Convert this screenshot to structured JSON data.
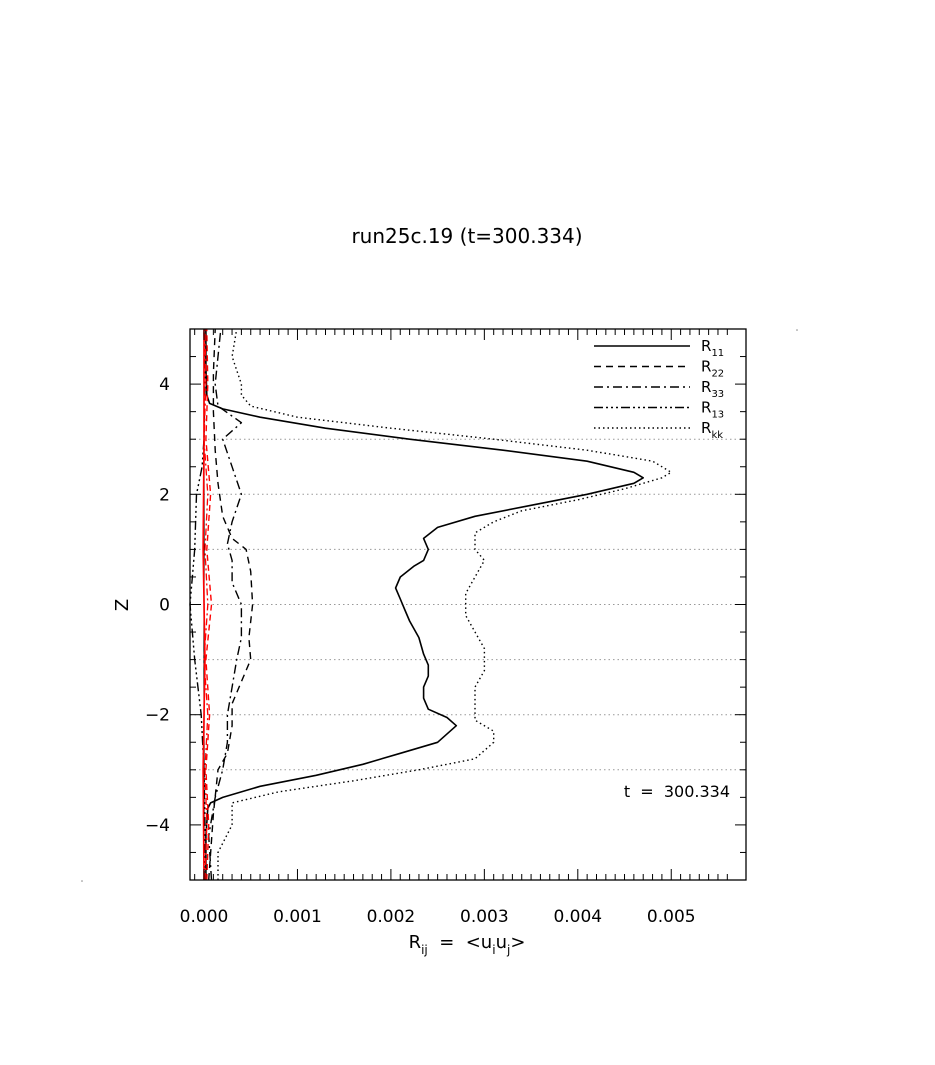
{
  "chart_data": {
    "type": "line",
    "title": "run25c.19 (t=300.334)",
    "xlabel": {
      "main": "R",
      "sub": "ij",
      "mid": "  =  <u",
      "sub2": "i",
      "mid2": "u",
      "sub3": "j",
      "end": ">"
    },
    "ylabel": "Z",
    "xlim": [
      -0.00015,
      0.0058
    ],
    "ylim": [
      -5,
      5
    ],
    "x_ticks": [
      0.0,
      0.001,
      0.002,
      0.003,
      0.004,
      0.005
    ],
    "x_tick_labels": [
      "0.000",
      "0.001",
      "0.002",
      "0.003",
      "0.004",
      "0.005"
    ],
    "y_ticks": [
      -4,
      -2,
      0,
      2,
      4
    ],
    "y_tick_labels": [
      "−4",
      "−2",
      "0",
      "2",
      "4"
    ],
    "grid": "dotted horizontal at z = -3, -2, -1, 0, 1, 2, 3",
    "grid_y": [
      -3,
      -2,
      -1,
      0,
      1,
      2,
      3
    ],
    "annotation": "t  =  300.334",
    "legend": {
      "placement": "top-right"
    },
    "colors": {
      "axes": "#000000",
      "grid": "#999999",
      "red_series": "#ff0000"
    },
    "series": [
      {
        "name": "R",
        "sub": "11",
        "style": "solid",
        "points": [
          [
            2e-05,
            -5
          ],
          [
            2e-05,
            -4.2
          ],
          [
            4e-05,
            -3.7
          ],
          [
            7e-05,
            -3.6
          ],
          [
            0.0002,
            -3.5
          ],
          [
            0.0006,
            -3.3
          ],
          [
            0.0012,
            -3.1
          ],
          [
            0.0017,
            -2.9
          ],
          [
            0.0021,
            -2.7
          ],
          [
            0.0025,
            -2.5
          ],
          [
            0.0027,
            -2.2
          ],
          [
            0.0026,
            -2.05
          ],
          [
            0.0024,
            -1.9
          ],
          [
            0.00235,
            -1.7
          ],
          [
            0.00235,
            -1.5
          ],
          [
            0.0024,
            -1.3
          ],
          [
            0.0024,
            -1.1
          ],
          [
            0.00235,
            -0.9
          ],
          [
            0.0023,
            -0.6
          ],
          [
            0.0022,
            -0.3
          ],
          [
            0.00215,
            -0.1
          ],
          [
            0.0021,
            0.1
          ],
          [
            0.00205,
            0.3
          ],
          [
            0.0021,
            0.5
          ],
          [
            0.00225,
            0.7
          ],
          [
            0.00235,
            0.8
          ],
          [
            0.0024,
            1.0
          ],
          [
            0.00235,
            1.2
          ],
          [
            0.0025,
            1.4
          ],
          [
            0.0029,
            1.6
          ],
          [
            0.0035,
            1.8
          ],
          [
            0.0041,
            2.0
          ],
          [
            0.0046,
            2.2
          ],
          [
            0.0047,
            2.3
          ],
          [
            0.0046,
            2.4
          ],
          [
            0.0041,
            2.6
          ],
          [
            0.0032,
            2.8
          ],
          [
            0.0022,
            3.0
          ],
          [
            0.0013,
            3.2
          ],
          [
            0.0006,
            3.4
          ],
          [
            0.0002,
            3.55
          ],
          [
            6e-05,
            3.65
          ],
          [
            3e-05,
            3.8
          ],
          [
            2e-05,
            4.3
          ],
          [
            2e-05,
            5
          ]
        ]
      },
      {
        "name": "R",
        "sub": "22",
        "style": "dashed",
        "points": [
          [
            5e-05,
            -5
          ],
          [
            0.0001,
            -3.8
          ],
          [
            0.00015,
            -3.0
          ],
          [
            0.00025,
            -2.7
          ],
          [
            0.0003,
            -2.2
          ],
          [
            0.0003,
            -1.8
          ],
          [
            0.0004,
            -1.4
          ],
          [
            0.0005,
            -1.0
          ],
          [
            0.00048,
            -0.6
          ],
          [
            0.00052,
            0.0
          ],
          [
            0.0005,
            0.6
          ],
          [
            0.00045,
            1.0
          ],
          [
            0.0003,
            1.2
          ],
          [
            0.0002,
            1.6
          ],
          [
            0.00015,
            2.2
          ],
          [
            0.00012,
            2.8
          ],
          [
            0.0001,
            3.5
          ],
          [
            0.0001,
            4.2
          ],
          [
            0.00012,
            5
          ]
        ]
      },
      {
        "name": "R",
        "sub": "33",
        "style": "dashdot",
        "points": [
          [
            8e-05,
            -5
          ],
          [
            5e-05,
            -4.2
          ],
          [
            0.00012,
            -3.5
          ],
          [
            0.0002,
            -3.0
          ],
          [
            0.00025,
            -2.5
          ],
          [
            0.00025,
            -2.0
          ],
          [
            0.0003,
            -1.5
          ],
          [
            0.00035,
            -1.0
          ],
          [
            0.0004,
            -0.6
          ],
          [
            0.0004,
            0.0
          ],
          [
            0.0003,
            0.4
          ],
          [
            0.0003,
            0.8
          ],
          [
            0.00025,
            1.1
          ],
          [
            0.0003,
            1.5
          ],
          [
            0.0004,
            2.0
          ],
          [
            0.0003,
            2.5
          ],
          [
            0.0002,
            3.0
          ],
          [
            0.0004,
            3.3
          ],
          [
            0.00015,
            3.6
          ],
          [
            0.00012,
            4.0
          ],
          [
            0.00015,
            4.5
          ],
          [
            0.00018,
            5
          ]
        ]
      },
      {
        "name": "R",
        "sub": "13",
        "style": "dashdotdot",
        "points": [
          [
            0.0,
            -5
          ],
          [
            1e-05,
            -4
          ],
          [
            0.0,
            -3
          ],
          [
            -3e-05,
            -2
          ],
          [
            -0.0001,
            -1
          ],
          [
            -0.00015,
            0
          ],
          [
            -0.0001,
            1
          ],
          [
            -8e-05,
            2
          ],
          [
            -2e-05,
            2.5
          ],
          [
            0.0,
            3
          ],
          [
            1e-05,
            4
          ],
          [
            0.0,
            5
          ]
        ]
      },
      {
        "name": "R",
        "sub": "kk",
        "style": "dotted",
        "points": [
          [
            0.00015,
            -5
          ],
          [
            0.00015,
            -4.5
          ],
          [
            0.0003,
            -4.0
          ],
          [
            0.0003,
            -3.6
          ],
          [
            0.0008,
            -3.4
          ],
          [
            0.0016,
            -3.2
          ],
          [
            0.0023,
            -3.0
          ],
          [
            0.0029,
            -2.8
          ],
          [
            0.0031,
            -2.5
          ],
          [
            0.0031,
            -2.3
          ],
          [
            0.0029,
            -2.1
          ],
          [
            0.0029,
            -1.9
          ],
          [
            0.0029,
            -1.5
          ],
          [
            0.003,
            -1.2
          ],
          [
            0.003,
            -0.8
          ],
          [
            0.0029,
            -0.5
          ],
          [
            0.0028,
            -0.2
          ],
          [
            0.0028,
            0.2
          ],
          [
            0.0029,
            0.5
          ],
          [
            0.003,
            0.8
          ],
          [
            0.0029,
            1.0
          ],
          [
            0.0029,
            1.3
          ],
          [
            0.0031,
            1.5
          ],
          [
            0.0034,
            1.7
          ],
          [
            0.004,
            1.9
          ],
          [
            0.0045,
            2.1
          ],
          [
            0.0049,
            2.3
          ],
          [
            0.005,
            2.4
          ],
          [
            0.0048,
            2.6
          ],
          [
            0.0041,
            2.8
          ],
          [
            0.0031,
            3.0
          ],
          [
            0.002,
            3.2
          ],
          [
            0.001,
            3.4
          ],
          [
            0.0005,
            3.6
          ],
          [
            0.0004,
            3.8
          ],
          [
            0.0004,
            4.0
          ],
          [
            0.0003,
            4.5
          ],
          [
            0.00035,
            5
          ]
        ]
      },
      {
        "name": "",
        "style": "red-solid",
        "points": [
          [
            0.0,
            -5
          ],
          [
            -1e-05,
            -3
          ],
          [
            1e-05,
            -1
          ],
          [
            -1e-05,
            1
          ],
          [
            0.0,
            3
          ],
          [
            0.0,
            5
          ]
        ]
      },
      {
        "name": "",
        "style": "red-dashed",
        "points": [
          [
            3e-05,
            -5
          ],
          [
            5e-05,
            -4
          ],
          [
            2e-05,
            -3
          ],
          [
            6e-05,
            -2
          ],
          [
            2e-05,
            -1
          ],
          [
            8e-05,
            0
          ],
          [
            3e-05,
            1
          ],
          [
            7e-05,
            2
          ],
          [
            2e-05,
            3
          ],
          [
            4e-05,
            4
          ],
          [
            3e-05,
            5
          ]
        ]
      },
      {
        "name": "",
        "style": "red-dashdot",
        "points": [
          [
            1e-05,
            -5
          ],
          [
            3e-05,
            -4
          ],
          [
            1e-05,
            -3
          ],
          [
            4e-05,
            -2
          ],
          [
            0.0,
            -1
          ],
          [
            4e-05,
            0
          ],
          [
            1e-05,
            1
          ],
          [
            4e-05,
            2
          ],
          [
            0.0,
            3
          ],
          [
            2e-05,
            4
          ],
          [
            1e-05,
            5
          ]
        ]
      }
    ]
  }
}
